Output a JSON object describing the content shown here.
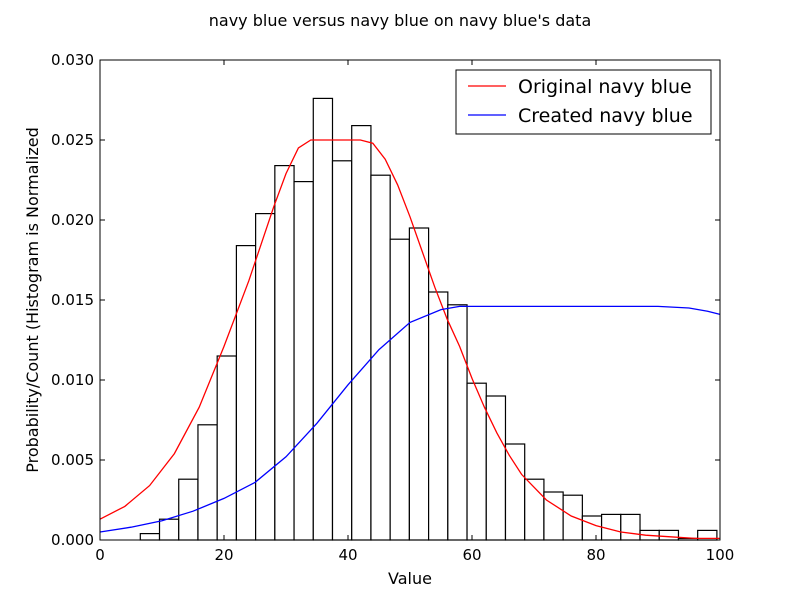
{
  "chart_data": {
    "type": "bar",
    "title": "navy blue versus navy blue on navy blue's data",
    "xlabel": "Value",
    "ylabel": "Probability/Count (Histogram is Normalized",
    "xlim": [
      0,
      100
    ],
    "ylim": [
      0,
      0.03
    ],
    "xticks": [
      0,
      20,
      40,
      60,
      80,
      100
    ],
    "xtick_labels": [
      "0",
      "20",
      "40",
      "60",
      "80",
      "100"
    ],
    "yticks": [
      0,
      0.005,
      0.01,
      0.015,
      0.02,
      0.025,
      0.03
    ],
    "ytick_labels": [
      "0.000",
      "0.005",
      "0.010",
      "0.015",
      "0.020",
      "0.025",
      "0.030"
    ],
    "grid": false,
    "legend_position": "top-right",
    "histogram": {
      "bin_edges": [
        6.5,
        9.6,
        12.7,
        15.8,
        18.9,
        22.0,
        25.1,
        28.2,
        31.3,
        34.4,
        37.5,
        40.6,
        43.7,
        46.8,
        49.9,
        53.0,
        56.1,
        59.2,
        62.3,
        65.4,
        68.5,
        71.6,
        74.7,
        77.8,
        80.9,
        84.0,
        87.1,
        90.2,
        93.3,
        96.4,
        99.5
      ],
      "values": [
        0.0004,
        0.0013,
        0.0038,
        0.0072,
        0.0115,
        0.0184,
        0.0204,
        0.0234,
        0.0224,
        0.0276,
        0.0237,
        0.0259,
        0.0228,
        0.0188,
        0.0195,
        0.0155,
        0.0147,
        0.0098,
        0.009,
        0.006,
        0.0038,
        0.003,
        0.0028,
        0.0015,
        0.0016,
        0.0016,
        0.0006,
        0.0006,
        0.0001,
        0.0006
      ],
      "fill_color": "#ffffff",
      "edge_color": "#000000"
    },
    "series": [
      {
        "name": "Original navy blue",
        "color": "#ff0000",
        "x": [
          0,
          4,
          8,
          12,
          16,
          20,
          24,
          28,
          30,
          32,
          34,
          36,
          38,
          40,
          42,
          44,
          46,
          48,
          50,
          52,
          54,
          56,
          58,
          60,
          62,
          64,
          66,
          68,
          72,
          76,
          80,
          84,
          88,
          92,
          96,
          100
        ],
        "y": [
          0.0013,
          0.0021,
          0.0034,
          0.0054,
          0.0083,
          0.0121,
          0.0162,
          0.0208,
          0.0229,
          0.0245,
          0.025,
          0.025,
          0.025,
          0.025,
          0.025,
          0.0248,
          0.0238,
          0.0222,
          0.0202,
          0.018,
          0.0158,
          0.0138,
          0.0121,
          0.0101,
          0.0083,
          0.0067,
          0.0053,
          0.0041,
          0.0025,
          0.0015,
          0.0009,
          0.0005,
          0.0003,
          0.0002,
          0.0001,
          0.0001
        ]
      },
      {
        "name": "Created navy blue",
        "color": "#0000ff",
        "x": [
          0,
          5,
          10,
          15,
          20,
          25,
          30,
          35,
          40,
          45,
          50,
          55,
          58,
          60,
          65,
          70,
          75,
          80,
          85,
          90,
          95,
          98,
          100
        ],
        "y": [
          0.0005,
          0.0008,
          0.0012,
          0.0018,
          0.0026,
          0.0036,
          0.0052,
          0.0073,
          0.0097,
          0.0119,
          0.0136,
          0.0144,
          0.0146,
          0.0146,
          0.0146,
          0.0146,
          0.0146,
          0.0146,
          0.0146,
          0.0146,
          0.0145,
          0.0143,
          0.0141
        ]
      }
    ]
  }
}
